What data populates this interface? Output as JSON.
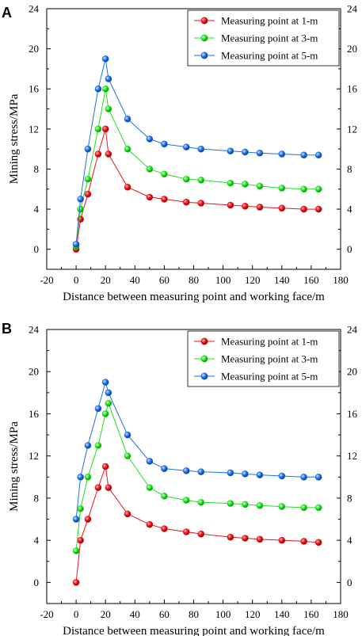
{
  "chart_data": [
    {
      "panel_label": "A",
      "type": "line",
      "xlabel": "Distance between measuring point and working face/m",
      "ylabel": "Mining stress/MPa",
      "xlim": [
        -20,
        180
      ],
      "ylim": [
        -2,
        24
      ],
      "xticks": [
        -20,
        0,
        20,
        40,
        60,
        80,
        100,
        120,
        140,
        160,
        180
      ],
      "yticks": [
        0,
        4,
        8,
        12,
        16,
        20,
        24
      ],
      "right_axis_ticks": true,
      "grid": false,
      "legend_position": "top-right",
      "series": [
        {
          "name": "Measuring point at 1-m",
          "color": "#e8131b",
          "x": [
            0,
            3,
            8,
            15,
            20,
            22,
            35,
            50,
            60,
            75,
            85,
            105,
            115,
            125,
            140,
            155,
            165
          ],
          "y": [
            0,
            3,
            5.5,
            9.5,
            12,
            9.5,
            6.2,
            5.2,
            5,
            4.7,
            4.6,
            4.4,
            4.3,
            4.2,
            4.1,
            4,
            4
          ]
        },
        {
          "name": "Measuring point at 3-m",
          "color": "#1fe01f",
          "x": [
            0,
            3,
            8,
            15,
            20,
            22,
            35,
            50,
            60,
            75,
            85,
            105,
            115,
            125,
            140,
            155,
            165
          ],
          "y": [
            0.3,
            4,
            7,
            12,
            16,
            14,
            10,
            8,
            7.5,
            7,
            6.9,
            6.6,
            6.5,
            6.3,
            6.1,
            6,
            6
          ]
        },
        {
          "name": "Measuring point at 5-m",
          "color": "#1d6fe6",
          "x": [
            0,
            3,
            8,
            15,
            20,
            22,
            35,
            50,
            60,
            75,
            85,
            105,
            115,
            125,
            140,
            155,
            165
          ],
          "y": [
            0.5,
            5,
            10,
            16,
            19,
            17,
            13,
            11,
            10.5,
            10.2,
            10,
            9.8,
            9.7,
            9.6,
            9.5,
            9.4,
            9.4
          ]
        }
      ]
    },
    {
      "panel_label": "B",
      "type": "line",
      "xlabel": "Distance between measuring point and working face/m",
      "ylabel": "Mining stress/MPa",
      "xlim": [
        -20,
        180
      ],
      "ylim": [
        -2,
        24
      ],
      "xticks": [
        -20,
        0,
        20,
        40,
        60,
        80,
        100,
        120,
        140,
        160,
        180
      ],
      "yticks": [
        0,
        4,
        8,
        12,
        16,
        20,
        24
      ],
      "right_axis_ticks": true,
      "grid": false,
      "legend_position": "top-right",
      "series": [
        {
          "name": "Measuring point at 1-m",
          "color": "#e8131b",
          "x": [
            0,
            3,
            8,
            15,
            20,
            22,
            35,
            50,
            60,
            75,
            85,
            105,
            115,
            125,
            140,
            155,
            165
          ],
          "y": [
            0,
            4,
            6,
            9,
            11,
            9,
            6.5,
            5.5,
            5.1,
            4.8,
            4.6,
            4.3,
            4.2,
            4.1,
            4,
            3.9,
            3.8
          ]
        },
        {
          "name": "Measuring point at 3-m",
          "color": "#1fe01f",
          "x": [
            0,
            3,
            8,
            15,
            20,
            22,
            35,
            50,
            60,
            75,
            85,
            105,
            115,
            125,
            140,
            155,
            165
          ],
          "y": [
            3,
            7,
            10,
            13,
            16,
            17,
            12,
            9,
            8.2,
            7.8,
            7.6,
            7.5,
            7.4,
            7.3,
            7.2,
            7.1,
            7.1
          ]
        },
        {
          "name": "Measuring point at 5-m",
          "color": "#1d6fe6",
          "x": [
            0,
            3,
            8,
            15,
            20,
            22,
            35,
            50,
            60,
            75,
            85,
            105,
            115,
            125,
            140,
            155,
            165
          ],
          "y": [
            6,
            10,
            13,
            16.5,
            19,
            18,
            14,
            11.5,
            10.8,
            10.6,
            10.5,
            10.4,
            10.3,
            10.2,
            10.1,
            10,
            10
          ]
        }
      ]
    }
  ]
}
